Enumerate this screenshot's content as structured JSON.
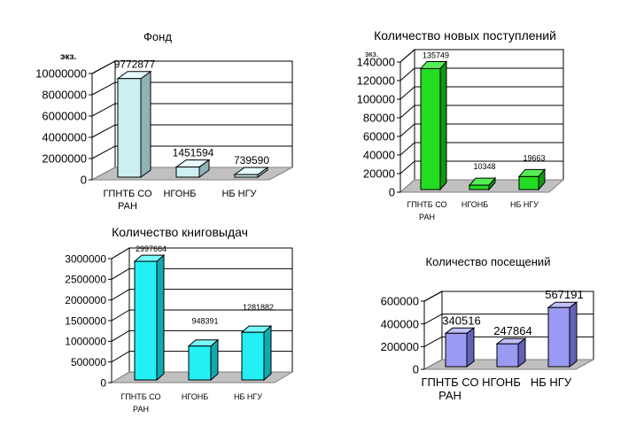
{
  "chart_data": [
    {
      "type": "bar",
      "title": "Фонд",
      "ylabel": "экз.",
      "categories": [
        "ГПНТБ СО РАН",
        "НГОНБ",
        "НБ НГУ"
      ],
      "values": [
        9772877,
        1451594,
        739590
      ],
      "value_labels": [
        "9772877",
        "1451594",
        "739590"
      ],
      "yticks": [
        "0",
        "2000000",
        "4000000",
        "6000000",
        "8000000",
        "10000000"
      ],
      "ylim": [
        0,
        10000000
      ],
      "grid": true,
      "colors": {
        "front": "#cdf0f2",
        "side": "#8fb4b8",
        "top": "#e6fafb"
      }
    },
    {
      "type": "bar",
      "title": "Количество новых поступлений",
      "ylabel": "экз.",
      "categories": [
        "ГПНТБ СО РАН",
        "НГОНБ",
        "НБ НГУ"
      ],
      "values": [
        135749,
        10348,
        19663
      ],
      "value_labels": [
        "135749",
        "10348",
        "19663"
      ],
      "yticks": [
        "0",
        "20000",
        "40000",
        "60000",
        "80000",
        "100000",
        "120000",
        "140000"
      ],
      "ylim": [
        0,
        140000
      ],
      "grid": true,
      "colors": {
        "front": "#22dd22",
        "side": "#119911",
        "top": "#55ee55"
      }
    },
    {
      "type": "bar",
      "title": "Количество книговыдач",
      "ylabel": "",
      "categories": [
        "ГПНТБ СО РАН",
        "НГОНБ",
        "НБ НГУ"
      ],
      "values": [
        2997664,
        948391,
        1281882
      ],
      "value_labels": [
        "2997664",
        "948391",
        "1281882"
      ],
      "yticks": [
        "0",
        "500000",
        "1000000",
        "1500000",
        "2000000",
        "2500000",
        "3000000"
      ],
      "ylim": [
        0,
        3000000
      ],
      "grid": true,
      "colors": {
        "front": "#22f0f2",
        "side": "#11a9b0",
        "top": "#77fbfc"
      }
    },
    {
      "type": "bar",
      "title": "Количество посещений",
      "ylabel": "",
      "categories": [
        "ГПНТБ СО РАН",
        "НГОНБ",
        "НБ НГУ"
      ],
      "values": [
        340516,
        247864,
        567191
      ],
      "value_labels": [
        "340516",
        "247864",
        "567191"
      ],
      "yticks": [
        "0",
        "200000",
        "400000",
        "600000"
      ],
      "ylim": [
        0,
        600000
      ],
      "grid": true,
      "colors": {
        "front": "#9a9af2",
        "side": "#6262b8",
        "top": "#c0c0fa"
      }
    }
  ]
}
